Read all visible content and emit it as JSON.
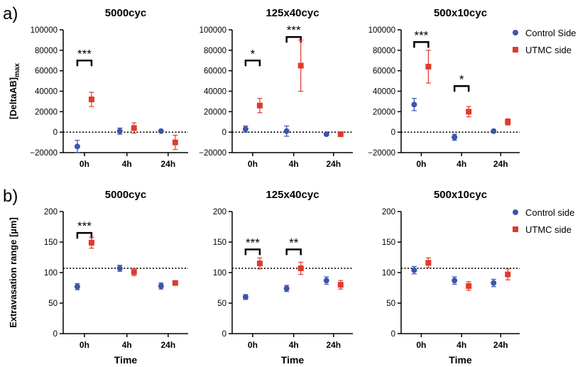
{
  "figure": {
    "row_labels": [
      "a)",
      "b)"
    ],
    "colors": {
      "control": "#3b55a8",
      "utmc": "#e03a2e",
      "axis": "#000000",
      "text": "#000000"
    }
  },
  "chart_data": [
    {
      "type": "scatter",
      "row": "a",
      "title": "5000cyc",
      "ylabel": "[DeltaAB]",
      "ylabel_subscript": "max",
      "xlabel": "",
      "categories": [
        "0h",
        "4h",
        "24h"
      ],
      "ylim": [
        -20000,
        100000
      ],
      "yticks": [
        -20000,
        0,
        20000,
        40000,
        60000,
        80000,
        100000
      ],
      "ytick_labels": [
        "−20000",
        "0",
        "20000",
        "40000",
        "60000",
        "80000",
        "100000"
      ],
      "reference_line": 0,
      "series": [
        {
          "name": "Control Side",
          "marker": "circle",
          "color": "#3b55a8",
          "values": [
            -14000,
            1000,
            1000
          ],
          "errors": [
            6000,
            3000,
            1000
          ]
        },
        {
          "name": "UTMC side",
          "marker": "square",
          "color": "#e03a2e",
          "values": [
            32000,
            4000,
            -10000
          ],
          "errors": [
            7000,
            5000,
            7000
          ]
        }
      ],
      "significance": [
        {
          "label": "***",
          "from": "0h",
          "to": "0h",
          "y": 70000
        }
      ],
      "legend": null
    },
    {
      "type": "scatter",
      "row": "a",
      "title": "125x40cyc",
      "ylabel": "",
      "xlabel": "",
      "categories": [
        "0h",
        "4h",
        "24h"
      ],
      "ylim": [
        -20000,
        100000
      ],
      "yticks": [
        -20000,
        0,
        20000,
        40000,
        60000,
        80000,
        100000
      ],
      "ytick_labels": [
        "−20000",
        "0",
        "20000",
        "40000",
        "60000",
        "80000",
        "100000"
      ],
      "reference_line": 0,
      "series": [
        {
          "name": "Control Side",
          "marker": "circle",
          "color": "#3b55a8",
          "values": [
            3000,
            1000,
            -2000
          ],
          "errors": [
            3000,
            5000,
            1000
          ]
        },
        {
          "name": "UTMC side",
          "marker": "square",
          "color": "#e03a2e",
          "values": [
            26000,
            65000,
            -2000
          ],
          "errors": [
            7000,
            25000,
            1000
          ]
        }
      ],
      "significance": [
        {
          "label": "*",
          "from": "0h",
          "to": "0h",
          "y": 70000
        },
        {
          "label": "***",
          "from": "4h",
          "to": "4h",
          "y": 93000
        }
      ],
      "legend": null
    },
    {
      "type": "scatter",
      "row": "a",
      "title": "500x10cyc",
      "ylabel": "",
      "xlabel": "",
      "categories": [
        "0h",
        "4h",
        "24h"
      ],
      "ylim": [
        -20000,
        100000
      ],
      "yticks": [
        -20000,
        0,
        20000,
        40000,
        60000,
        80000,
        100000
      ],
      "ytick_labels": [
        "−20000",
        "0",
        "20000",
        "40000",
        "60000",
        "80000",
        "100000"
      ],
      "reference_line": 0,
      "series": [
        {
          "name": "Control Side",
          "marker": "circle",
          "color": "#3b55a8",
          "values": [
            27000,
            -5000,
            1000
          ],
          "errors": [
            6000,
            3000,
            1000
          ]
        },
        {
          "name": "UTMC side",
          "marker": "square",
          "color": "#e03a2e",
          "values": [
            64000,
            20000,
            10000
          ],
          "errors": [
            16000,
            5000,
            3000
          ]
        }
      ],
      "significance": [
        {
          "label": "***",
          "from": "0h",
          "to": "0h",
          "y": 88000
        },
        {
          "label": "*",
          "from": "4h",
          "to": "4h",
          "y": 45000
        }
      ],
      "legend": {
        "position": "right",
        "entries": [
          "Control Side",
          "UTMC side"
        ]
      }
    },
    {
      "type": "scatter",
      "row": "b",
      "title": "5000cyc",
      "ylabel": "Extravasation range [µm]",
      "xlabel": "Time",
      "categories": [
        "0h",
        "4h",
        "24h"
      ],
      "ylim": [
        0,
        200
      ],
      "yticks": [
        0,
        50,
        100,
        150,
        200
      ],
      "ytick_labels": [
        "0",
        "50",
        "100",
        "150",
        "200"
      ],
      "reference_line": 107,
      "series": [
        {
          "name": "Control side",
          "marker": "circle",
          "color": "#3b55a8",
          "values": [
            77,
            107,
            78
          ],
          "errors": [
            5,
            5,
            5
          ]
        },
        {
          "name": "UTMC side",
          "marker": "square",
          "color": "#e03a2e",
          "values": [
            149,
            101,
            83
          ],
          "errors": [
            9,
            6,
            2
          ]
        }
      ],
      "significance": [
        {
          "label": "***",
          "from": "0h",
          "to": "0h",
          "y": 165
        }
      ],
      "legend": null
    },
    {
      "type": "scatter",
      "row": "b",
      "title": "125x40cyc",
      "ylabel": "",
      "xlabel": "Time",
      "categories": [
        "0h",
        "4h",
        "24h"
      ],
      "ylim": [
        0,
        200
      ],
      "yticks": [
        0,
        50,
        100,
        150,
        200
      ],
      "ytick_labels": [
        "0",
        "50",
        "100",
        "150",
        "200"
      ],
      "reference_line": 107,
      "series": [
        {
          "name": "Control side",
          "marker": "circle",
          "color": "#3b55a8",
          "values": [
            60,
            74,
            87
          ],
          "errors": [
            4,
            5,
            6
          ]
        },
        {
          "name": "UTMC side",
          "marker": "square",
          "color": "#e03a2e",
          "values": [
            115,
            107,
            80
          ],
          "errors": [
            9,
            10,
            7
          ]
        }
      ],
      "significance": [
        {
          "label": "***",
          "from": "0h",
          "to": "0h",
          "y": 138
        },
        {
          "label": "**",
          "from": "4h",
          "to": "4h",
          "y": 138
        }
      ],
      "legend": null
    },
    {
      "type": "scatter",
      "row": "b",
      "title": "500x10cyc",
      "ylabel": "",
      "xlabel": "Time",
      "categories": [
        "0h",
        "4h",
        "24h"
      ],
      "ylim": [
        0,
        200
      ],
      "yticks": [
        0,
        50,
        100,
        150,
        200
      ],
      "ytick_labels": [
        "0",
        "50",
        "100",
        "150",
        "200"
      ],
      "reference_line": 107,
      "series": [
        {
          "name": "Control side",
          "marker": "circle",
          "color": "#3b55a8",
          "values": [
            104,
            87,
            83
          ],
          "errors": [
            6,
            6,
            6
          ]
        },
        {
          "name": "UTMC side",
          "marker": "square",
          "color": "#e03a2e",
          "values": [
            116,
            78,
            97
          ],
          "errors": [
            8,
            7,
            9
          ]
        }
      ],
      "significance": [],
      "legend": {
        "position": "right",
        "entries": [
          "Control side",
          "UTMC side"
        ]
      }
    }
  ]
}
